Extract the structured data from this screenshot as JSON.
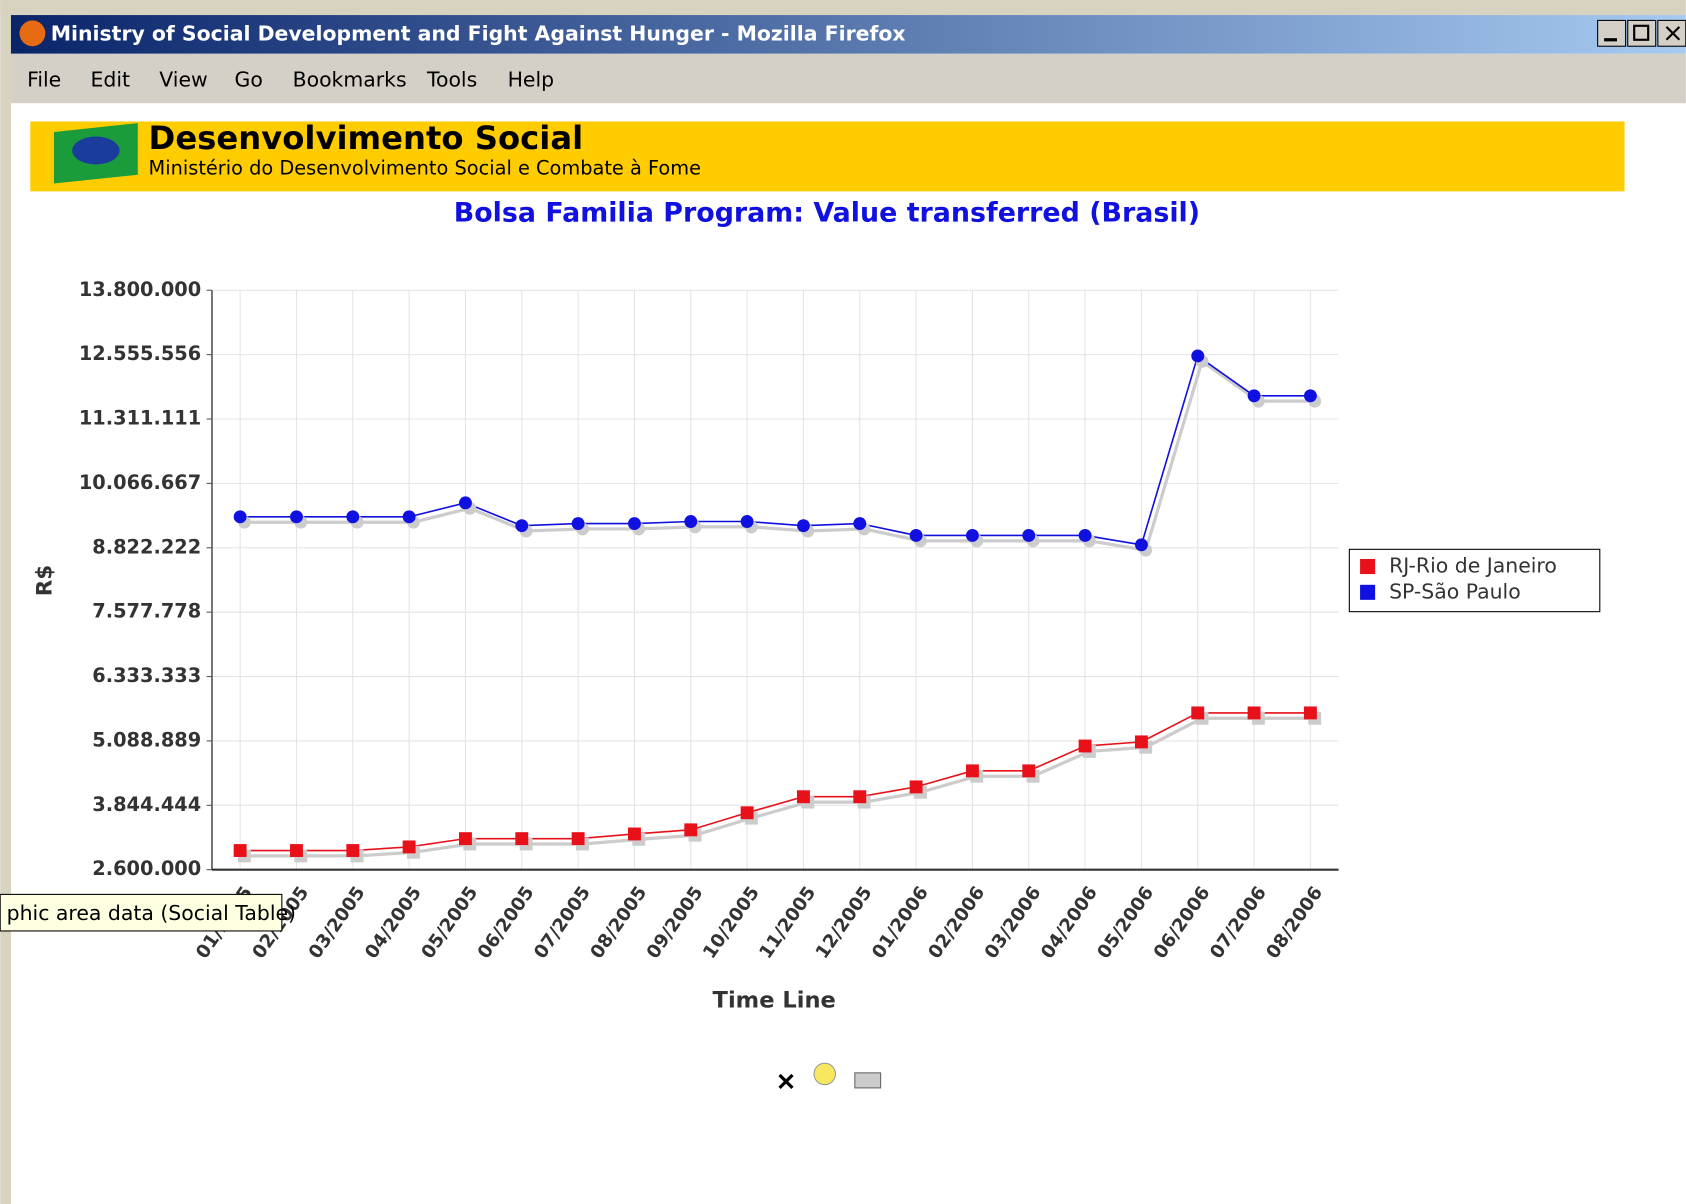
{
  "window": {
    "title": "Ministry of Social Development and Fight Against Hunger - Mozilla Firefox"
  },
  "menu": [
    "File",
    "Edit",
    "View",
    "Go",
    "Bookmarks",
    "Tools",
    "Help"
  ],
  "banner": {
    "title": "Desenvolvimento Social",
    "subtitle": "Ministério do Desenvolvimento Social e Combate à Fome"
  },
  "tooltip": "phic area data (Social Table)",
  "chart_data": {
    "type": "line",
    "title": "Bolsa Familia Program: Value transferred (Brasil)",
    "xlabel": "Time Line",
    "ylabel": "R$",
    "categories": [
      "01/2005",
      "02/2005",
      "03/2005",
      "04/2005",
      "05/2005",
      "06/2005",
      "07/2005",
      "08/2005",
      "09/2005",
      "10/2005",
      "11/2005",
      "12/2005",
      "01/2006",
      "02/2006",
      "03/2006",
      "04/2006",
      "05/2006",
      "06/2006",
      "07/2006",
      "08/2006"
    ],
    "series": [
      {
        "name": "RJ-Rio de Janeiro",
        "color": "#e8111a",
        "marker": "square",
        "values": [
          2970000,
          2970000,
          2970000,
          3040000,
          3200000,
          3200000,
          3200000,
          3290000,
          3370000,
          3700000,
          4010000,
          4010000,
          4200000,
          4510000,
          4510000,
          4990000,
          5070000,
          5630000,
          5630000,
          5630000
        ]
      },
      {
        "name": "SP-São Paulo",
        "color": "#1010e0",
        "marker": "circle",
        "values": [
          9420000,
          9420000,
          9420000,
          9420000,
          9690000,
          9250000,
          9290000,
          9290000,
          9330000,
          9330000,
          9250000,
          9290000,
          9060000,
          9060000,
          9060000,
          9060000,
          8880000,
          12530000,
          11760000,
          11760000
        ]
      }
    ],
    "ylim": [
      2600000,
      13800000
    ],
    "yticks": [
      {
        "value": 2600000,
        "label": "2.600.000"
      },
      {
        "value": 3844444,
        "label": "3.844.444"
      },
      {
        "value": 5088889,
        "label": "5.088.889"
      },
      {
        "value": 6333333,
        "label": "6.333.333"
      },
      {
        "value": 7577778,
        "label": "7.577.778"
      },
      {
        "value": 8822222,
        "label": "8.822.222"
      },
      {
        "value": 10066667,
        "label": "10.066.667"
      },
      {
        "value": 11311111,
        "label": "11.311.111"
      },
      {
        "value": 12555556,
        "label": "12.555.556"
      },
      {
        "value": 13800000,
        "label": "13.800.000"
      }
    ],
    "grid": true,
    "legend": "right"
  }
}
